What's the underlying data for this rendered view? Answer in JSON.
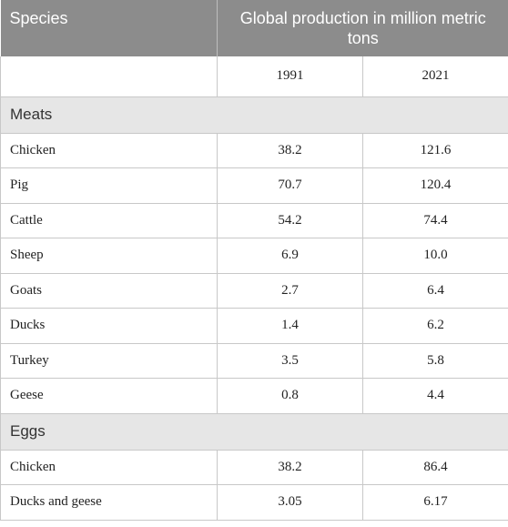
{
  "header": {
    "species_label": "Species",
    "production_label": "Global production in million metric tons"
  },
  "years": [
    "1991",
    "2021"
  ],
  "sections": [
    {
      "name": "Meats",
      "rows": [
        {
          "species": "Chicken",
          "v1991": "38.2",
          "v2021": "121.6"
        },
        {
          "species": "Pig",
          "v1991": "70.7",
          "v2021": "120.4"
        },
        {
          "species": "Cattle",
          "v1991": "54.2",
          "v2021": "74.4"
        },
        {
          "species": "Sheep",
          "v1991": "6.9",
          "v2021": "10.0"
        },
        {
          "species": "Goats",
          "v1991": "2.7",
          "v2021": "6.4"
        },
        {
          "species": "Ducks",
          "v1991": "1.4",
          "v2021": "6.2"
        },
        {
          "species": "Turkey",
          "v1991": "3.5",
          "v2021": "5.8"
        },
        {
          "species": "Geese",
          "v1991": "0.8",
          "v2021": "4.4"
        }
      ]
    },
    {
      "name": "Eggs",
      "rows": [
        {
          "species": "Chicken",
          "v1991": "38.2",
          "v2021": "86.4"
        },
        {
          "species": "Ducks and geese",
          "v1991": "3.05",
          "v2021": "6.17"
        }
      ]
    }
  ]
}
